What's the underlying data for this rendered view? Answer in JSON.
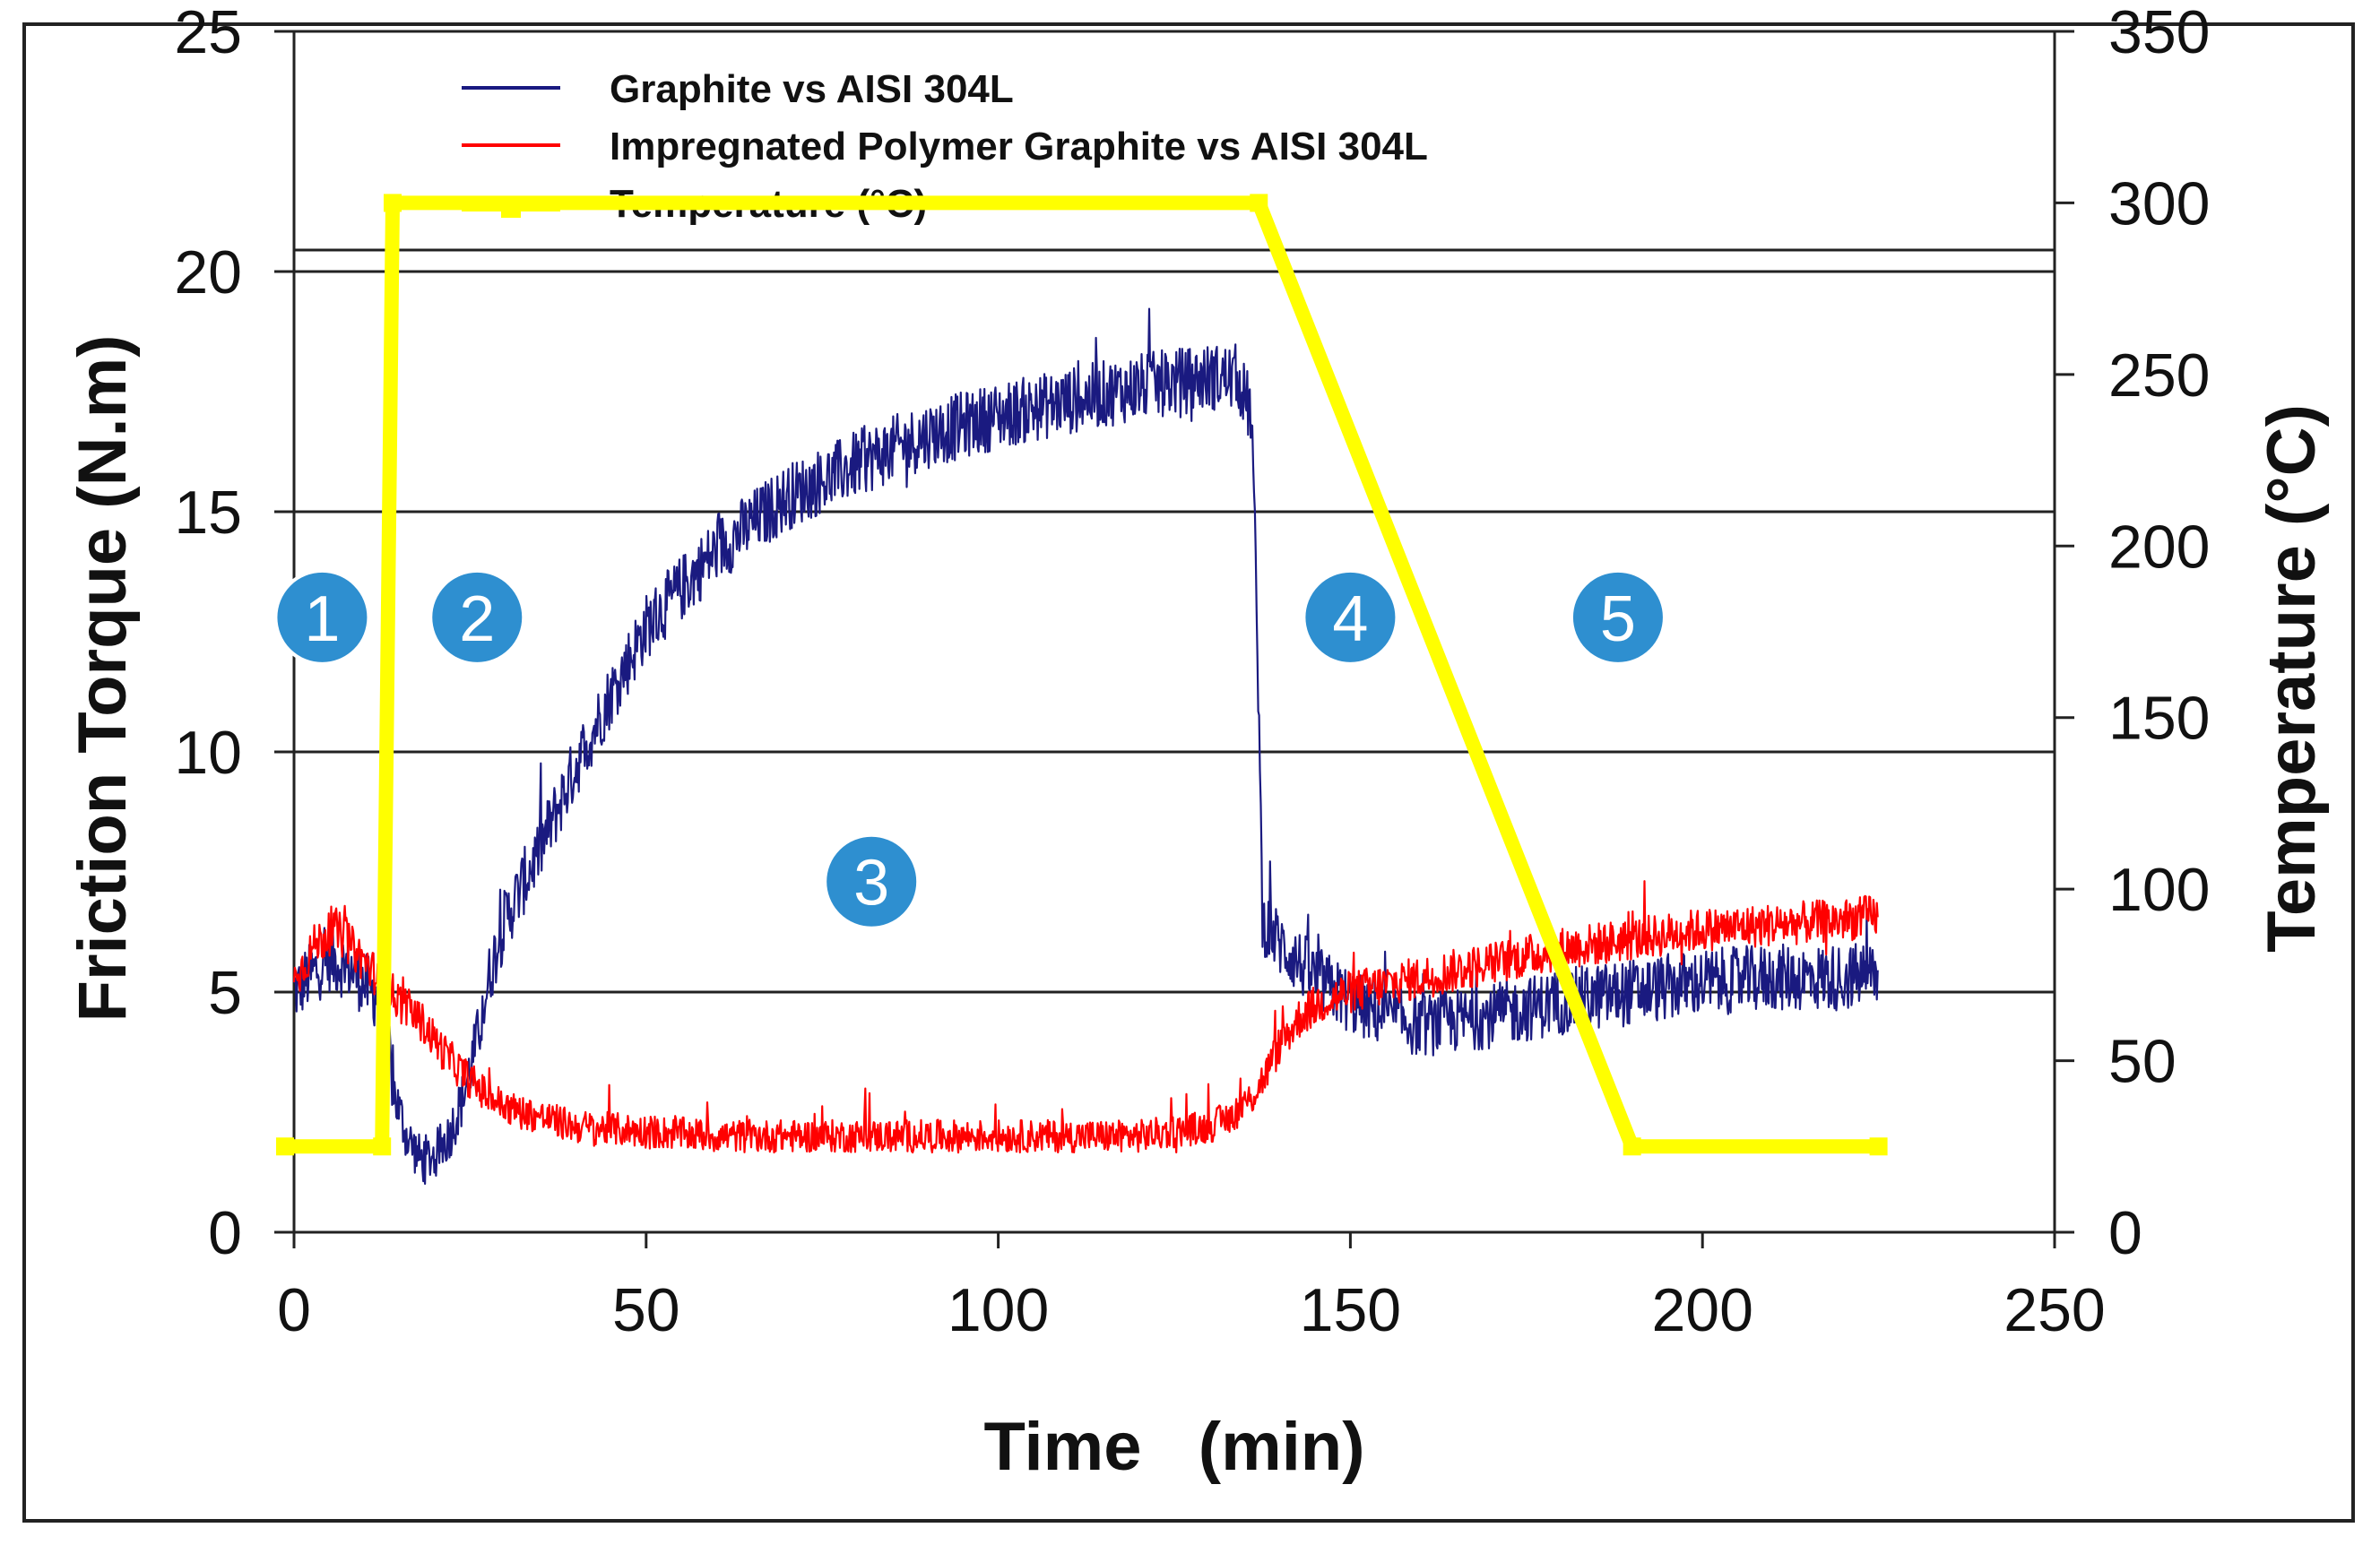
{
  "chart_data": {
    "type": "line",
    "title": "",
    "xlabel": "Time   (min)",
    "ylabel": "Friction Torque (N.m)",
    "y2label": "Temperature (°C)",
    "xlim": [
      0,
      250
    ],
    "ylim": [
      0,
      25
    ],
    "y2lim": [
      0,
      350
    ],
    "x_ticks": [
      0,
      50,
      100,
      150,
      200,
      250
    ],
    "x_tick_labels": [
      "0",
      "50",
      "100",
      "150",
      "200",
      "250"
    ],
    "y_ticks": [
      0,
      5,
      10,
      15,
      20,
      25
    ],
    "y_tick_labels": [
      "0",
      "5",
      "10",
      "15",
      "20",
      "25"
    ],
    "y2_ticks": [
      0,
      50,
      100,
      150,
      200,
      250,
      300,
      350
    ],
    "y2_tick_labels": [
      "0",
      "50",
      "100",
      "150",
      "200",
      "250",
      "300",
      "350"
    ],
    "grid": true,
    "legend_position": "top",
    "series": [
      {
        "name": "Graphite vs AISI 304L",
        "color": "#1a1a80",
        "axis": "left",
        "noise": 0.7,
        "x": [
          0,
          2,
          5,
          8,
          11,
          13,
          14,
          16,
          18,
          20,
          22,
          24,
          26,
          28,
          30,
          35,
          40,
          45,
          50,
          60,
          70,
          80,
          90,
          100,
          110,
          120,
          130,
          134,
          136,
          137,
          137.5,
          140,
          145,
          150,
          155,
          160,
          170,
          180,
          190,
          200,
          210,
          220,
          225
        ],
        "values": [
          5.0,
          5.3,
          5.7,
          5.5,
          5.0,
          4.8,
          3.0,
          2.0,
          1.5,
          1.6,
          2.0,
          2.8,
          4.0,
          5.5,
          6.5,
          8.0,
          9.7,
          11.2,
          12.6,
          14.2,
          15.3,
          16.0,
          16.6,
          17.0,
          17.3,
          17.6,
          17.8,
          17.8,
          17.0,
          11.0,
          6.5,
          6.0,
          5.3,
          4.8,
          4.5,
          4.3,
          4.5,
          4.8,
          5.0,
          5.2,
          5.3,
          5.3,
          5.4
        ]
      },
      {
        "name": "Impregnated Polymer Graphite vs AISI 304L",
        "color": "#ff0000",
        "axis": "left",
        "noise": 0.45,
        "x": [
          0,
          3,
          6,
          9,
          12,
          15,
          18,
          21,
          24,
          27,
          30,
          35,
          40,
          50,
          60,
          70,
          80,
          90,
          100,
          110,
          120,
          125,
          130,
          133,
          136,
          138,
          140,
          143,
          146,
          150,
          160,
          170,
          180,
          190,
          200,
          210,
          220,
          225
        ],
        "values": [
          5.2,
          6.0,
          6.3,
          5.8,
          5.3,
          4.8,
          4.4,
          3.8,
          3.3,
          2.9,
          2.6,
          2.4,
          2.2,
          2.1,
          2.0,
          2.0,
          2.0,
          2.0,
          2.0,
          2.0,
          2.0,
          2.1,
          2.2,
          2.4,
          2.8,
          3.3,
          3.9,
          4.5,
          4.8,
          5.0,
          5.3,
          5.6,
          5.9,
          6.1,
          6.3,
          6.4,
          6.5,
          6.6
        ]
      },
      {
        "name": "Temperature (°C)",
        "color": "#ffff00",
        "axis": "right",
        "x": [
          -2,
          12.5,
          14,
          137,
          190,
          225
        ],
        "values": [
          25,
          25,
          300,
          300,
          25,
          25
        ]
      }
    ],
    "annotations": [
      {
        "label": "1",
        "x": 4,
        "y": 12.8,
        "color": "#2e8fd0"
      },
      {
        "label": "2",
        "x": 26,
        "y": 12.8,
        "color": "#2e8fd0"
      },
      {
        "label": "3",
        "x": 82,
        "y": 7.3,
        "color": "#2e8fd0"
      },
      {
        "label": "4",
        "x": 150,
        "y": 12.8,
        "color": "#2e8fd0"
      },
      {
        "label": "5",
        "x": 188,
        "y": 12.8,
        "color": "#2e8fd0"
      }
    ]
  }
}
